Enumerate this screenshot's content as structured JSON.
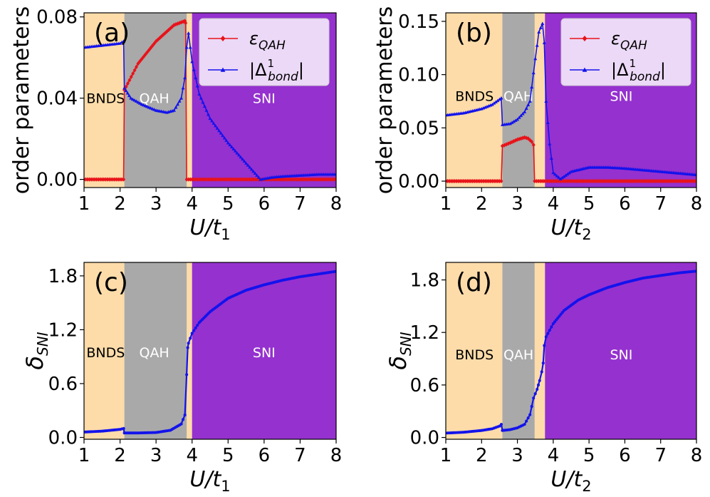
{
  "colors": {
    "bnds": "#fddcaa",
    "qah": "#a9a9a9",
    "gap": "#fddcaa",
    "sni": "#9531cf",
    "red": "#e8131a",
    "blue": "#1313ec"
  },
  "chart_data": [
    {
      "id": "a",
      "type": "line",
      "panel_label": "(a)",
      "xlabel": "U/t",
      "xlabel_sub": "1",
      "ylabel": "order parameters",
      "xlim": [
        1,
        8
      ],
      "ylim": [
        -0.004,
        0.082
      ],
      "xticks": [
        "1",
        "2",
        "3",
        "4",
        "5",
        "6",
        "7",
        "8"
      ],
      "yticks": [
        {
          "v": 0,
          "label": "0.00"
        },
        {
          "v": 0.04,
          "label": "0.04"
        },
        {
          "v": 0.08,
          "label": "0.08"
        }
      ],
      "regions": [
        {
          "name": "BNDS",
          "from": 1,
          "to": 2.12,
          "fill": "bnds",
          "text_color": "#000000",
          "label_x": 1.6
        },
        {
          "name": "QAH",
          "from": 2.12,
          "to": 3.85,
          "fill": "qah",
          "text_color": "#ffffff",
          "label_x": 2.95
        },
        {
          "name": "",
          "from": 3.85,
          "to": 4.0,
          "fill": "gap",
          "text_color": "#000000",
          "label_x": 3.9
        },
        {
          "name": "SNI",
          "from": 4.0,
          "to": 8,
          "fill": "sni",
          "text_color": "#ffffff",
          "label_x": 6.0
        }
      ],
      "region_label_y": 0.04,
      "legend": {
        "position": "top-right",
        "entries": [
          {
            "main": "ε",
            "sub": "QAH",
            "sup": "",
            "color": "red",
            "marker": "diamond"
          },
          {
            "main": "|Δ",
            "sub": "bond",
            "sup": "1",
            "close": "|",
            "color": "blue",
            "marker": "triangle"
          }
        ]
      },
      "series": [
        {
          "name": "ε_QAH",
          "color": "red",
          "marker": "diamond",
          "x": [
            1.0,
            2.1,
            2.12,
            2.5,
            3.0,
            3.5,
            3.8,
            3.82,
            3.85,
            4.0,
            5.0,
            6.0,
            7.0,
            8.0
          ],
          "y": [
            0.0,
            0.0,
            0.044,
            0.057,
            0.068,
            0.076,
            0.078,
            0.077,
            0.0,
            0.0,
            0.0,
            0.0,
            0.0,
            0.0
          ]
        },
        {
          "name": "|Δ_bond^1|",
          "color": "blue",
          "marker": "triangle",
          "x": [
            1.0,
            1.5,
            2.0,
            2.1,
            2.12,
            2.3,
            2.6,
            3.0,
            3.3,
            3.5,
            3.7,
            3.8,
            3.85,
            3.9,
            4.0,
            4.2,
            4.5,
            5.0,
            5.5,
            5.9,
            6.2,
            6.5,
            7.0,
            7.5,
            8.0
          ],
          "y": [
            0.065,
            0.066,
            0.067,
            0.068,
            0.045,
            0.04,
            0.037,
            0.034,
            0.033,
            0.034,
            0.04,
            0.05,
            0.065,
            0.072,
            0.058,
            0.042,
            0.03,
            0.018,
            0.008,
            0.0,
            0.001,
            0.0015,
            0.002,
            0.0025,
            0.0025
          ]
        }
      ]
    },
    {
      "id": "b",
      "type": "line",
      "panel_label": "(b)",
      "xlabel": "U/t",
      "xlabel_sub": "2",
      "ylabel": "order parameters",
      "xlim": [
        1,
        8
      ],
      "ylim": [
        -0.006,
        0.158
      ],
      "xticks": [
        "1",
        "2",
        "3",
        "4",
        "5",
        "6",
        "7",
        "8"
      ],
      "yticks": [
        {
          "v": 0,
          "label": "0.00"
        },
        {
          "v": 0.05,
          "label": "0.05"
        },
        {
          "v": 0.1,
          "label": "0.10"
        },
        {
          "v": 0.15,
          "label": "0.15"
        }
      ],
      "regions": [
        {
          "name": "BNDS",
          "from": 1,
          "to": 2.58,
          "fill": "bnds",
          "text_color": "#000000",
          "label_x": 1.8
        },
        {
          "name": "QAH",
          "from": 2.58,
          "to": 3.48,
          "fill": "qah",
          "text_color": "#ffffff",
          "label_x": 3.03
        },
        {
          "name": "",
          "from": 3.48,
          "to": 3.77,
          "fill": "gap",
          "text_color": "#000000",
          "label_x": 3.6
        },
        {
          "name": "SNI",
          "from": 3.77,
          "to": 8,
          "fill": "sni",
          "text_color": "#ffffff",
          "label_x": 5.9
        }
      ],
      "region_label_y": 0.08,
      "legend": {
        "position": "top-right",
        "entries": [
          {
            "main": "ε",
            "sub": "QAH",
            "sup": "",
            "color": "red",
            "marker": "diamond"
          },
          {
            "main": "|Δ",
            "sub": "bond",
            "sup": "1",
            "close": "|",
            "color": "blue",
            "marker": "triangle"
          }
        ]
      },
      "series": [
        {
          "name": "ε_QAH",
          "color": "red",
          "marker": "diamond",
          "x": [
            1.0,
            2.55,
            2.58,
            2.8,
            3.0,
            3.2,
            3.3,
            3.4,
            3.45,
            3.48,
            4.0,
            5.0,
            6.0,
            7.0,
            8.0
          ],
          "y": [
            0.0,
            0.0,
            0.033,
            0.036,
            0.039,
            0.041,
            0.04,
            0.037,
            0.034,
            0.0,
            0.0,
            0.0,
            0.0,
            0.0,
            0.0
          ]
        },
        {
          "name": "|Δ_bond^1|",
          "color": "blue",
          "marker": "triangle",
          "x": [
            1.0,
            1.5,
            2.0,
            2.3,
            2.55,
            2.58,
            2.8,
            3.0,
            3.2,
            3.35,
            3.5,
            3.6,
            3.7,
            3.75,
            3.8,
            3.9,
            4.0,
            4.2,
            4.5,
            5.0,
            5.5,
            6.0,
            7.0,
            8.0
          ],
          "y": [
            0.062,
            0.064,
            0.068,
            0.072,
            0.078,
            0.053,
            0.054,
            0.058,
            0.065,
            0.075,
            0.115,
            0.14,
            0.148,
            0.13,
            0.075,
            0.035,
            0.008,
            0.002,
            0.009,
            0.013,
            0.013,
            0.012,
            0.009,
            0.006
          ]
        }
      ]
    },
    {
      "id": "c",
      "type": "line",
      "panel_label": "(c)",
      "xlabel": "U/t",
      "xlabel_sub": "1",
      "ylabel": "δ",
      "ylabel_sub": "SNI",
      "xlim": [
        1,
        8
      ],
      "ylim": [
        -0.02,
        1.95
      ],
      "xticks": [
        "1",
        "2",
        "3",
        "4",
        "5",
        "6",
        "7",
        "8"
      ],
      "yticks": [
        {
          "v": 0,
          "label": "0.0"
        },
        {
          "v": 0.6,
          "label": "0.6"
        },
        {
          "v": 1.2,
          "label": "1.2"
        },
        {
          "v": 1.8,
          "label": "1.8"
        }
      ],
      "regions": [
        {
          "name": "BNDS",
          "from": 1,
          "to": 2.12,
          "fill": "bnds",
          "text_color": "#000000",
          "label_x": 1.6
        },
        {
          "name": "QAH",
          "from": 2.12,
          "to": 3.85,
          "fill": "qah",
          "text_color": "#ffffff",
          "label_x": 2.95
        },
        {
          "name": "",
          "from": 3.85,
          "to": 4.0,
          "fill": "gap",
          "text_color": "#000000",
          "label_x": 3.9
        },
        {
          "name": "SNI",
          "from": 4.0,
          "to": 8,
          "fill": "sni",
          "text_color": "#ffffff",
          "label_x": 6.0
        }
      ],
      "region_label_y": 0.95,
      "series": [
        {
          "name": "δ_SNI",
          "color": "blue",
          "marker": "circle",
          "x": [
            1.0,
            1.5,
            2.0,
            2.1,
            2.12,
            2.5,
            3.0,
            3.4,
            3.7,
            3.8,
            3.85,
            3.88,
            3.9,
            4.0,
            4.2,
            4.5,
            5.0,
            5.5,
            6.0,
            6.5,
            7.0,
            7.5,
            8.0
          ],
          "y": [
            0.06,
            0.07,
            0.09,
            0.1,
            0.05,
            0.05,
            0.055,
            0.08,
            0.15,
            0.25,
            0.7,
            1.0,
            1.05,
            1.16,
            1.28,
            1.4,
            1.55,
            1.64,
            1.7,
            1.75,
            1.79,
            1.82,
            1.85
          ]
        }
      ]
    },
    {
      "id": "d",
      "type": "line",
      "panel_label": "(d)",
      "xlabel": "U/t",
      "xlabel_sub": "2",
      "ylabel": "δ",
      "ylabel_sub": "SNI",
      "xlim": [
        1,
        8
      ],
      "ylim": [
        -0.02,
        2.0
      ],
      "xticks": [
        "1",
        "2",
        "3",
        "4",
        "5",
        "6",
        "7",
        "8"
      ],
      "yticks": [
        {
          "v": 0,
          "label": "0.0"
        },
        {
          "v": 0.6,
          "label": "0.6"
        },
        {
          "v": 1.2,
          "label": "1.2"
        },
        {
          "v": 1.8,
          "label": "1.8"
        }
      ],
      "regions": [
        {
          "name": "BNDS",
          "from": 1,
          "to": 2.58,
          "fill": "bnds",
          "text_color": "#000000",
          "label_x": 1.8
        },
        {
          "name": "QAH",
          "from": 2.58,
          "to": 3.48,
          "fill": "qah",
          "text_color": "#ffffff",
          "label_x": 3.03
        },
        {
          "name": "",
          "from": 3.48,
          "to": 3.77,
          "fill": "gap",
          "text_color": "#000000",
          "label_x": 3.6
        },
        {
          "name": "SNI",
          "from": 3.77,
          "to": 8,
          "fill": "sni",
          "text_color": "#ffffff",
          "label_x": 5.9
        }
      ],
      "region_label_y": 0.95,
      "series": [
        {
          "name": "δ_SNI",
          "color": "blue",
          "marker": "circle",
          "x": [
            1.0,
            1.5,
            2.0,
            2.3,
            2.5,
            2.55,
            2.58,
            2.8,
            3.0,
            3.2,
            3.35,
            3.45,
            3.55,
            3.62,
            3.68,
            3.72,
            3.75,
            3.8,
            4.0,
            4.3,
            4.7,
            5.0,
            5.5,
            6.0,
            6.5,
            7.0,
            7.5,
            8.0
          ],
          "y": [
            0.05,
            0.06,
            0.08,
            0.1,
            0.13,
            0.15,
            0.08,
            0.09,
            0.11,
            0.15,
            0.26,
            0.45,
            0.55,
            0.65,
            0.75,
            0.85,
            1.05,
            1.15,
            1.3,
            1.45,
            1.57,
            1.63,
            1.71,
            1.77,
            1.82,
            1.85,
            1.88,
            1.9
          ]
        }
      ]
    }
  ]
}
